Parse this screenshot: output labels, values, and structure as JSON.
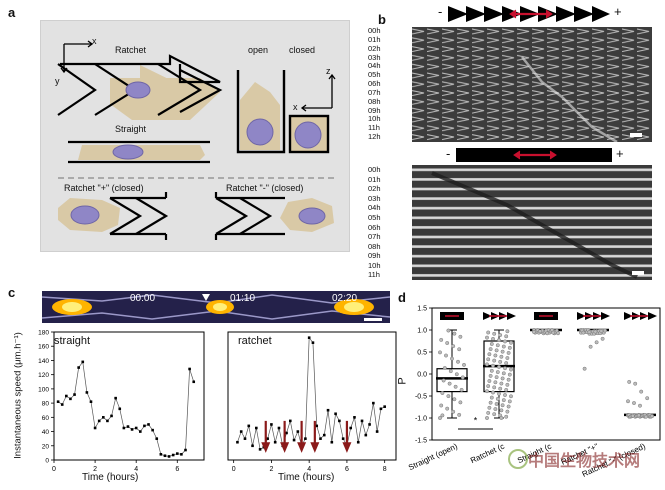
{
  "panel_labels": {
    "a": "a",
    "b": "b",
    "c": "c",
    "d": "d"
  },
  "panel_a": {
    "axis_x": "x",
    "axis_y": "y",
    "axis_z": "z",
    "axis_x2": "x",
    "ratchet": "Ratchet",
    "straight": "Straight",
    "open": "open",
    "closed": "closed",
    "ratchet_plus": "Ratchet \"+\" (closed)",
    "ratchet_minus": "Ratchet \"-\" (closed)"
  },
  "panel_b": {
    "top_minus": "-",
    "top_plus": "+",
    "times_top": [
      "00h",
      "01h",
      "02h",
      "03h",
      "04h",
      "05h",
      "06h",
      "07h",
      "08h",
      "09h",
      "10h",
      "11h",
      "12h"
    ],
    "bot_minus": "-",
    "bot_plus": "+",
    "times_bottom": [
      "00h",
      "01h",
      "02h",
      "03h",
      "04h",
      "05h",
      "06h",
      "07h",
      "08h",
      "09h",
      "10h",
      "11h"
    ]
  },
  "panel_c": {
    "micro_times": [
      "00:00",
      "01:10",
      "02:20"
    ],
    "ylabel": "Instantaneous speed (μm.h⁻¹)",
    "xlabel_left": "Time (hours)",
    "xlabel_right": "Time (hours)",
    "title_left": "straight",
    "title_right": "ratchet"
  },
  "panel_d": {
    "ylabel": "P",
    "categories": [
      "Straight (open)",
      "Ratchet (closed)",
      "Straight (closed)",
      "Ratchet \"+\"",
      "Ratchet \"-\" (closed)"
    ],
    "cat_label_texts": [
      "Straight (open)",
      "Ratchet (c",
      "Straight (c",
      "Ratchet \"+\"",
      "Ratchet \"-\" (closed)"
    ],
    "significance": "*"
  },
  "watermark": "中国生物技术网",
  "chart_data": [
    {
      "type": "line",
      "title": "straight",
      "xlabel": "Time (hours)",
      "ylabel": "Instantaneous speed (μm.h⁻¹)",
      "xlim": [
        0,
        7.3
      ],
      "ylim": [
        0,
        180
      ],
      "xticks": [
        0,
        2,
        4,
        6
      ],
      "yticks": [
        0,
        20,
        40,
        60,
        80,
        100,
        120,
        140,
        160,
        180
      ],
      "x": [
        0.2,
        0.4,
        0.6,
        0.8,
        1.0,
        1.2,
        1.4,
        1.6,
        1.8,
        2.0,
        2.2,
        2.4,
        2.6,
        2.8,
        3.0,
        3.2,
        3.4,
        3.6,
        3.8,
        4.0,
        4.2,
        4.4,
        4.6,
        4.8,
        5.0,
        5.2,
        5.4,
        5.6,
        5.8,
        6.0,
        6.2,
        6.4,
        6.6,
        6.8
      ],
      "values": [
        82,
        78,
        90,
        86,
        92,
        130,
        138,
        95,
        82,
        45,
        55,
        60,
        55,
        62,
        87,
        72,
        45,
        47,
        43,
        45,
        40,
        48,
        50,
        42,
        30,
        8,
        6,
        5,
        7,
        9,
        8,
        14,
        128,
        110
      ]
    },
    {
      "type": "line",
      "title": "ratchet",
      "xlabel": "Time (hours)",
      "xlim": [
        -0.3,
        8.6
      ],
      "ylim": [
        0,
        180
      ],
      "xticks": [
        0,
        2,
        4,
        6,
        8
      ],
      "yticks": [
        0,
        20,
        40,
        60,
        80,
        100,
        120,
        140,
        160,
        180
      ],
      "x": [
        0.2,
        0.4,
        0.6,
        0.8,
        1.0,
        1.2,
        1.4,
        1.6,
        1.8,
        2.0,
        2.2,
        2.4,
        2.6,
        2.8,
        3.0,
        3.2,
        3.4,
        3.6,
        3.8,
        4.0,
        4.2,
        4.4,
        4.6,
        4.8,
        5.0,
        5.2,
        5.4,
        5.6,
        5.8,
        6.0,
        6.2,
        6.4,
        6.6,
        6.8,
        7.0,
        7.2,
        7.4,
        7.6,
        7.8,
        8.0
      ],
      "values": [
        25,
        40,
        30,
        48,
        20,
        45,
        15,
        18,
        30,
        50,
        25,
        45,
        20,
        38,
        55,
        28,
        40,
        20,
        30,
        172,
        165,
        48,
        30,
        35,
        70,
        25,
        65,
        55,
        30,
        20,
        45,
        60,
        25,
        55,
        35,
        50,
        80,
        40,
        72,
        75
      ],
      "arrows_at_hours": [
        1.7,
        2.7,
        3.6,
        4.3,
        6.0
      ]
    },
    {
      "type": "scatter",
      "ylabel": "P",
      "ylim": [
        -1.5,
        1.5
      ],
      "yticks": [
        -1.5,
        -1.0,
        -0.5,
        0.0,
        0.5,
        1.0,
        1.5
      ],
      "categories": [
        "Straight (open)",
        "Ratchet (closed)",
        "Straight (closed)",
        "Ratchet \"+\"",
        "Ratchet \"-\" (closed)"
      ],
      "boxes": [
        {
          "min": -1.0,
          "q1": -0.4,
          "median": -0.1,
          "q3": 0.12,
          "max": 1.0
        },
        {
          "min": -1.0,
          "q1": -0.4,
          "median": 0.18,
          "q3": 0.75,
          "max": 1.0
        },
        {
          "median": 1.0
        },
        {
          "median": 1.0
        },
        {
          "median": -0.93
        }
      ],
      "significance": "*"
    }
  ]
}
